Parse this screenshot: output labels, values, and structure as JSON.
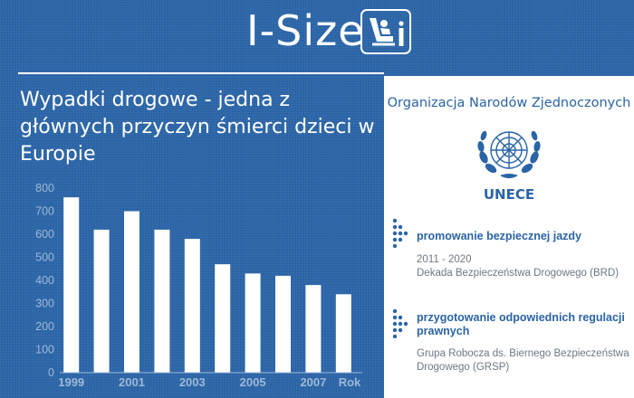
{
  "header": {
    "title": "I-Size",
    "logo_icon": "child-car-seat-info-icon"
  },
  "headline": "Wypadki drogowe - jedna z głównych przyczyn śmierci dzieci w Europie",
  "chart_data": {
    "type": "bar",
    "categories": [
      "1999",
      "2000",
      "2001",
      "2002",
      "2003",
      "2004",
      "2005",
      "2006",
      "2007",
      "2008"
    ],
    "values": [
      760,
      620,
      700,
      620,
      580,
      470,
      430,
      420,
      380,
      340
    ],
    "x_tick_labels": [
      "1999",
      "2001",
      "2003",
      "2005",
      "2007"
    ],
    "xlabel": "Rok",
    "ylabel": "",
    "title": "",
    "ylim": [
      0,
      800
    ],
    "yticks": [
      0,
      100,
      200,
      300,
      400,
      500,
      600,
      700,
      800
    ],
    "grid": false,
    "bar_color": "#ffffff"
  },
  "panel": {
    "org_title": "Organizacja Narodów Zjednoczonych",
    "emblem_icon": "un-emblem-icon",
    "acronym": "UNECE",
    "items": [
      {
        "title": "promowanie bezpiecznej jazdy",
        "lines": [
          "2011 - 2020",
          "Dekada Bezpieczeństwa Drogowego (BRD)"
        ]
      },
      {
        "title": "przygotowanie odpowiednich regulacji prawnych",
        "text": "Grupa Robocza ds. Biernego Bezpieczeństwa Drogowego (GRSP)"
      }
    ]
  },
  "colors": {
    "background": "#2a64a6",
    "panel": "#ffffff",
    "accent": "#2a64a6",
    "muted_text": "#6c7884",
    "axis": "#9fb8d6"
  }
}
